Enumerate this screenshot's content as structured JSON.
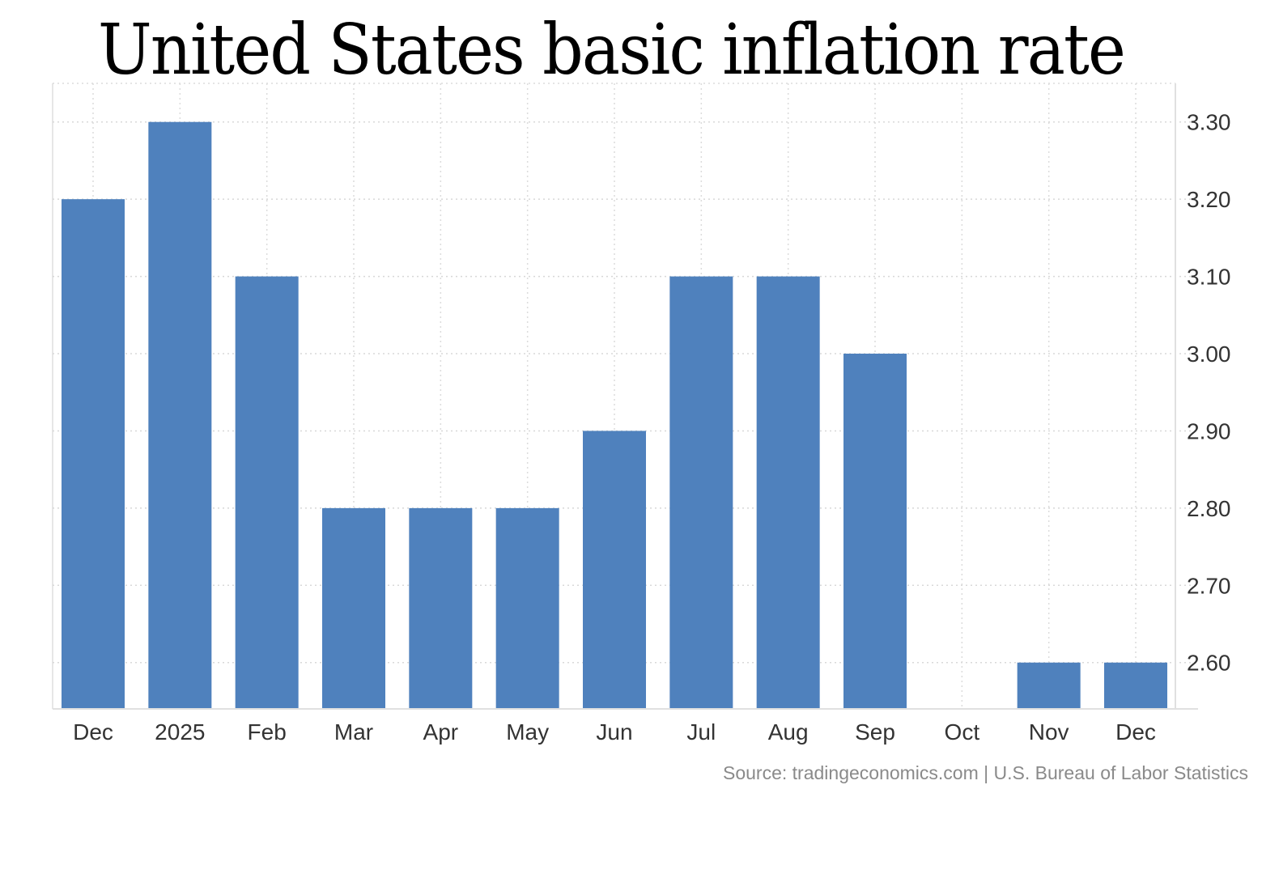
{
  "chart_data": {
    "type": "bar",
    "title": "United States basic inflation rate",
    "categories": [
      "Dec",
      "2025",
      "Feb",
      "Mar",
      "Apr",
      "May",
      "Jun",
      "Jul",
      "Aug",
      "Sep",
      "Oct",
      "Nov",
      "Dec"
    ],
    "values": [
      3.2,
      3.3,
      3.1,
      2.8,
      2.8,
      2.8,
      2.9,
      3.1,
      3.1,
      3.0,
      null,
      2.6,
      2.6
    ],
    "yticks": [
      "2.60",
      "2.70",
      "2.80",
      "2.90",
      "3.00",
      "3.10",
      "3.20",
      "3.30"
    ],
    "ylim": [
      2.54,
      3.35
    ],
    "yaxis_side": "right",
    "grid": true,
    "bar_color": "#4f81bd",
    "source": "Source: tradingeconomics.com | U.S. Bureau of Labor Statistics"
  }
}
